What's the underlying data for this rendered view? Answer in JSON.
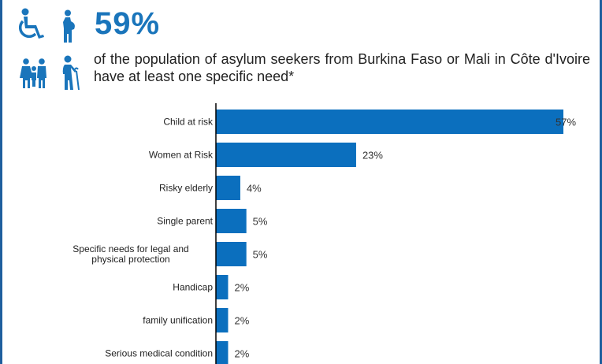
{
  "headline": {
    "percent": "59%",
    "description": "of the population of asylum seekers from Burkina Faso or Mali in Côte d'Ivoire have at least one specific need*"
  },
  "icons": [
    "wheelchair-icon",
    "pregnant-woman-icon",
    "family-icon",
    "elderly-person-icon"
  ],
  "colors": {
    "accent": "#1a75bb",
    "bar": "#0b6fbe",
    "border": "#1f5f9e"
  },
  "chart_data": {
    "type": "bar",
    "orientation": "horizontal",
    "categories": [
      "Child at risk",
      "Women at Risk",
      "Risky elderly",
      "Single parent",
      "Specific needs for legal and physical protection",
      "Handicap",
      "family unification",
      "Serious medical condition"
    ],
    "values": [
      57,
      23,
      4,
      5,
      5,
      2,
      2,
      2
    ],
    "value_labels": [
      "57%",
      "23%",
      "4%",
      "5%",
      "5%",
      "2%",
      "2%",
      "2%"
    ],
    "xlim": [
      0,
      57
    ],
    "grid": false,
    "legend": "none"
  }
}
